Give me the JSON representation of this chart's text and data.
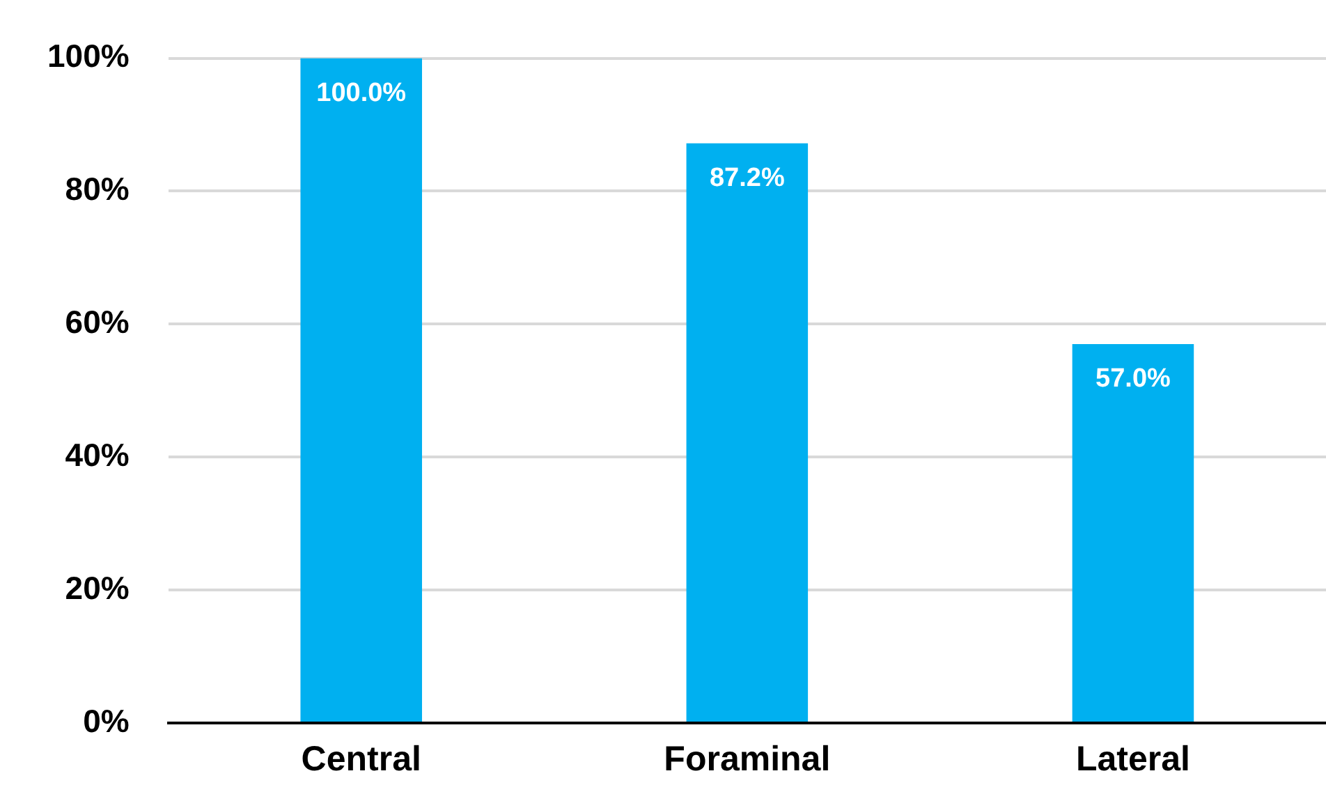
{
  "chart_data": {
    "type": "bar",
    "categories": [
      "Central",
      "Foraminal",
      "Lateral"
    ],
    "values": [
      100,
      87.2,
      57.0
    ],
    "value_labels": [
      "100.0%",
      "87.2%",
      "57.0%"
    ],
    "color": "#00b0f0",
    "ylim": [
      0,
      100
    ],
    "yticks": [
      {
        "value": 0,
        "label": "0%"
      },
      {
        "value": 20,
        "label": "20%"
      },
      {
        "value": 40,
        "label": "40%"
      },
      {
        "value": 60,
        "label": "60%"
      },
      {
        "value": 80,
        "label": "80%"
      },
      {
        "value": 100,
        "label": "100%"
      }
    ],
    "grid": "y",
    "legend": false
  }
}
